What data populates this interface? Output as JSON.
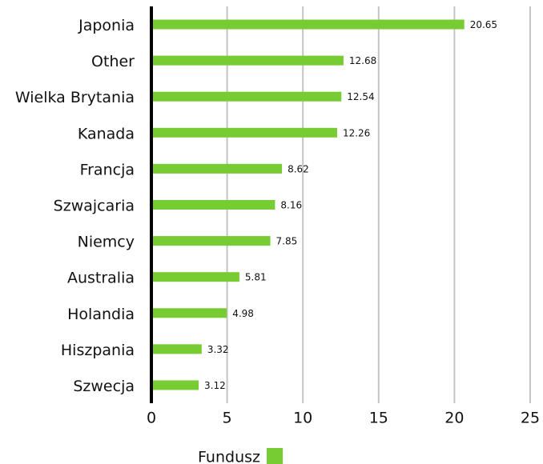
{
  "chart_data": {
    "type": "bar",
    "orientation": "horizontal",
    "categories": [
      "Japonia",
      "Other",
      "Wielka Brytania",
      "Kanada",
      "Francja",
      "Szwajcaria",
      "Niemcy",
      "Australia",
      "Holandia",
      "Hiszpania",
      "Szwecja"
    ],
    "series": [
      {
        "name": "Fundusz",
        "color": "#77cc33",
        "values": [
          20.65,
          12.68,
          12.54,
          12.26,
          8.62,
          8.16,
          7.85,
          5.81,
          4.98,
          3.32,
          3.12
        ]
      }
    ],
    "xlim": [
      0,
      25
    ],
    "xticks": [
      0,
      5,
      10,
      15,
      20,
      25
    ],
    "grid": true,
    "legend": "bottom"
  }
}
